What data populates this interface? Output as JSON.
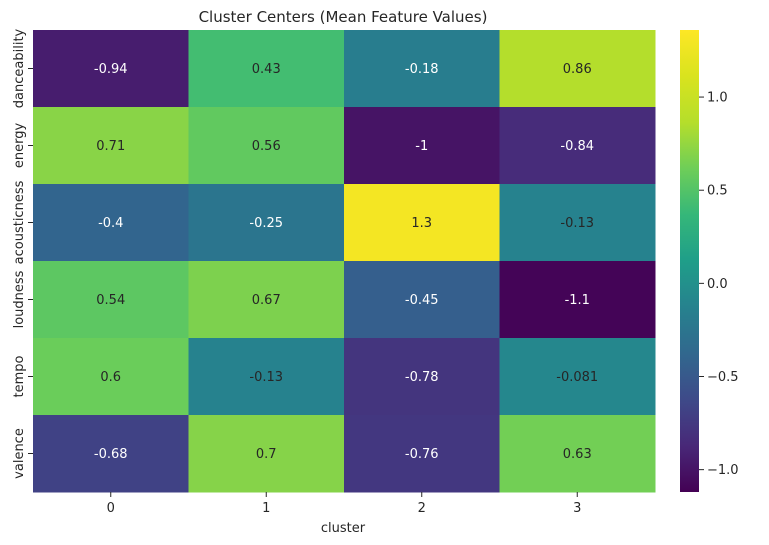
{
  "chart_data": {
    "type": "heatmap",
    "title": "Cluster Centers (Mean Feature Values)",
    "xlabel": "cluster",
    "ylabel": "",
    "x_categories": [
      "0",
      "1",
      "2",
      "3"
    ],
    "y_categories": [
      "danceability",
      "energy",
      "acousticness",
      "loudness",
      "tempo",
      "valence"
    ],
    "values": [
      [
        -0.94,
        0.43,
        -0.18,
        0.86
      ],
      [
        0.71,
        0.56,
        -1.0,
        -0.84
      ],
      [
        -0.4,
        -0.25,
        1.3,
        -0.13
      ],
      [
        0.54,
        0.67,
        -0.45,
        -1.1
      ],
      [
        0.6,
        -0.13,
        -0.78,
        -0.081
      ],
      [
        -0.68,
        0.7,
        -0.76,
        0.63
      ]
    ],
    "cell_labels": [
      [
        "-0.94",
        "0.43",
        "-0.18",
        "0.86"
      ],
      [
        "0.71",
        "0.56",
        "-1",
        "-0.84"
      ],
      [
        "-0.4",
        "-0.25",
        "1.3",
        "-0.13"
      ],
      [
        "0.54",
        "0.67",
        "-0.45",
        "-1.1"
      ],
      [
        "0.6",
        "-0.13",
        "-0.78",
        "-0.081"
      ],
      [
        "-0.68",
        "0.7",
        "-0.76",
        "0.63"
      ]
    ],
    "colormap": "viridis",
    "color_range": [
      -1.12,
      1.36
    ],
    "colorbar_ticks": [
      -1.0,
      -0.5,
      0.0,
      0.5,
      1.0
    ],
    "colorbar_tick_labels": [
      "−1.0",
      "−0.5",
      "0.0",
      "0.5",
      "1.0"
    ],
    "grid": false,
    "legend": "colorbar-right"
  }
}
